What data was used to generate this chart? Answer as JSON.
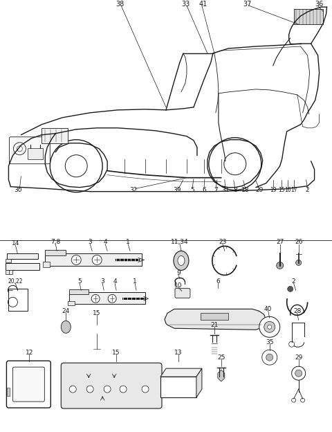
{
  "bg_color": "#ffffff",
  "line_color": "#1a1a1a",
  "text_color": "#1a1a1a",
  "fig_width": 4.8,
  "fig_height": 6.24,
  "dpi": 100
}
